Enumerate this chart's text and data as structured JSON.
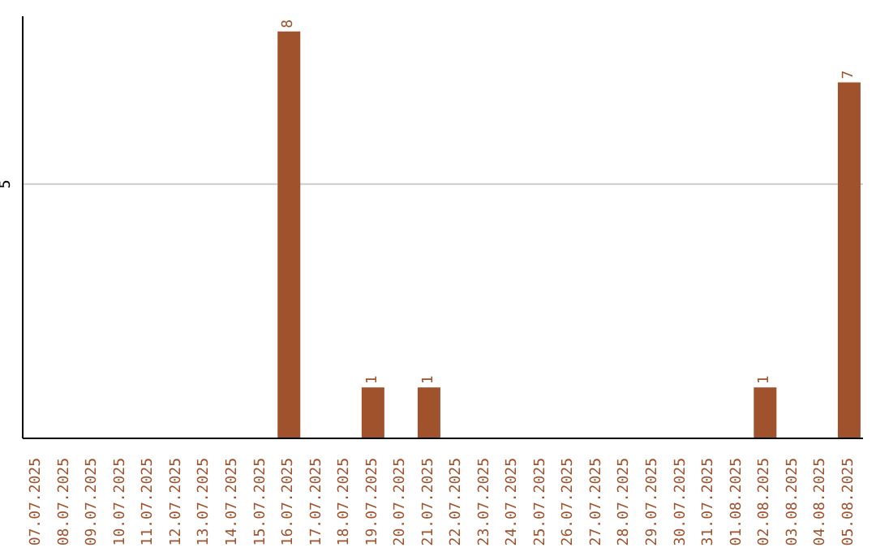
{
  "chart_data": {
    "type": "bar",
    "categories": [
      "07.07.2025",
      "08.07.2025",
      "09.07.2025",
      "10.07.2025",
      "11.07.2025",
      "12.07.2025",
      "13.07.2025",
      "14.07.2025",
      "15.07.2025",
      "16.07.2025",
      "17.07.2025",
      "18.07.2025",
      "19.07.2025",
      "20.07.2025",
      "21.07.2025",
      "22.07.2025",
      "23.07.2025",
      "24.07.2025",
      "25.07.2025",
      "26.07.2025",
      "27.07.2025",
      "28.07.2025",
      "29.07.2025",
      "30.07.2025",
      "31.07.2025",
      "01.08.2025",
      "02.08.2025",
      "03.08.2025",
      "04.08.2025",
      "05.08.2025"
    ],
    "values": [
      0,
      0,
      0,
      0,
      0,
      0,
      0,
      0,
      0,
      8,
      0,
      0,
      1,
      0,
      1,
      0,
      0,
      0,
      0,
      0,
      0,
      0,
      0,
      0,
      0,
      0,
      1,
      0,
      0,
      7
    ],
    "value_labels": [
      null,
      null,
      null,
      null,
      null,
      null,
      null,
      null,
      null,
      "8",
      null,
      null,
      "1",
      null,
      "1",
      null,
      null,
      null,
      null,
      null,
      null,
      null,
      null,
      null,
      null,
      null,
      "1",
      null,
      null,
      "7"
    ],
    "color": "#a0522d",
    "ylim": [
      0,
      8.3
    ],
    "yticks": [
      5
    ],
    "grid": "y"
  }
}
